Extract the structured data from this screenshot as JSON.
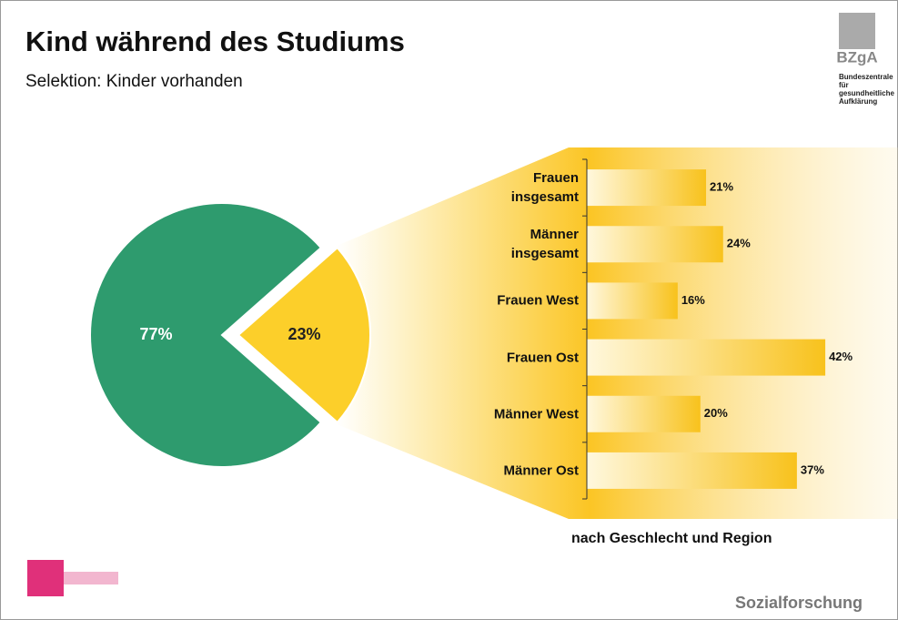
{
  "title": "Kind während des Studiums",
  "subtitle": "Selektion: Kinder vorhanden",
  "logo": {
    "name": "BZgA",
    "text": "Bundeszentrale für gesundheitliche Aufklärung"
  },
  "footer": "Sozialforschung",
  "chart_data": [
    {
      "type": "pie",
      "values": [
        77,
        23
      ],
      "value_labels": [
        "77%",
        "23%"
      ],
      "colors": [
        "#2e9b6e",
        "#fccf2a"
      ]
    },
    {
      "type": "bar",
      "orientation": "horizontal",
      "xlabel": "nach Geschlecht und Region",
      "categories": [
        "Frauen insgesamt",
        "Männer insgesamt",
        "Frauen West",
        "Frauen Ost",
        "Männer West",
        "Männer Ost"
      ],
      "values": [
        21,
        24,
        16,
        42,
        20,
        37
      ],
      "value_labels": [
        "21%",
        "24%",
        "16%",
        "42%",
        "20%",
        "37%"
      ],
      "color": "#f8c21c"
    }
  ]
}
